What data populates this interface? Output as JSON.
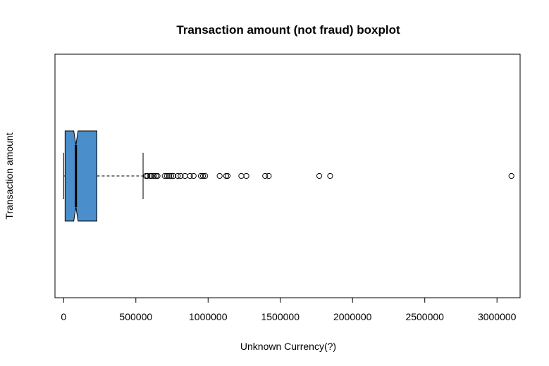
{
  "chart_data": {
    "type": "boxplot",
    "orientation": "horizontal",
    "notched": true,
    "title": "Transaction amount (not fraud) boxplot",
    "xlabel": "Unknown Currency(?)",
    "ylabel": "Transaction amount",
    "xlim": [
      -60000,
      3160000
    ],
    "x_ticks": [
      0,
      500000,
      1000000,
      1500000,
      2000000,
      2500000,
      3000000
    ],
    "x_tick_labels": [
      "0",
      "500000",
      "1000000",
      "1500000",
      "2000000",
      "2500000",
      "3000000"
    ],
    "box_color": "#4a8fcc",
    "box": {
      "whisker_low": 0,
      "q1": 10000,
      "median": 85000,
      "q3": 230000,
      "whisker_high": 550000,
      "notch_low": 70000,
      "notch_high": 100000
    },
    "outliers": [
      570000,
      580000,
      600000,
      610000,
      625000,
      640000,
      650000,
      700000,
      715000,
      730000,
      745000,
      760000,
      790000,
      810000,
      840000,
      875000,
      900000,
      950000,
      965000,
      980000,
      1080000,
      1125000,
      1135000,
      1230000,
      1265000,
      1395000,
      1420000,
      1770000,
      1845000,
      3100000
    ]
  }
}
